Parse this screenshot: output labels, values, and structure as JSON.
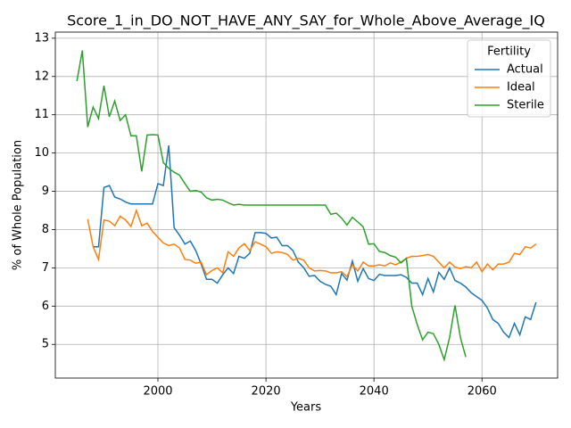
{
  "chart_data": {
    "type": "line",
    "title": "Score_1_in_DO_NOT_HAVE_ANY_SAY_for_Whole_Above_Average_IQ",
    "x_label": "Years",
    "y_label": "% of Whole Population",
    "legend_title": "Fertility",
    "legend_position": "upper right",
    "grid": true,
    "x": [
      1985,
      1986,
      1987,
      1988,
      1989,
      1990,
      1991,
      1992,
      1993,
      1994,
      1995,
      1996,
      1997,
      1998,
      1999,
      2000,
      2001,
      2002,
      2003,
      2004,
      2005,
      2006,
      2007,
      2008,
      2009,
      2010,
      2011,
      2012,
      2013,
      2014,
      2015,
      2016,
      2017,
      2018,
      2019,
      2020,
      2021,
      2022,
      2023,
      2024,
      2025,
      2026,
      2027,
      2028,
      2029,
      2030,
      2031,
      2032,
      2033,
      2034,
      2035,
      2036,
      2037,
      2038,
      2039,
      2040,
      2041,
      2042,
      2043,
      2044,
      2045,
      2046,
      2047,
      2048,
      2049,
      2050,
      2051,
      2052,
      2053,
      2054,
      2055,
      2056,
      2057,
      2058,
      2059,
      2060,
      2061,
      2062,
      2063,
      2064,
      2065,
      2066,
      2067,
      2068,
      2069,
      2070
    ],
    "xlim": [
      1981,
      2074
    ],
    "xticks": [
      2000,
      2020,
      2040,
      2060
    ],
    "ylim": [
      4.12,
      13.16
    ],
    "yticks": [
      5,
      6,
      7,
      8,
      9,
      10,
      11,
      12,
      13
    ],
    "series": [
      {
        "name": "Actual",
        "color": "#1f77b4",
        "values": [
          null,
          null,
          null,
          7.55,
          7.55,
          9.1,
          9.15,
          8.85,
          8.8,
          8.72,
          8.67,
          8.67,
          8.67,
          8.67,
          8.67,
          9.2,
          9.15,
          10.2,
          8.05,
          7.85,
          7.62,
          7.7,
          7.45,
          7.1,
          6.7,
          6.7,
          6.6,
          6.82,
          7.0,
          6.85,
          7.3,
          7.25,
          7.38,
          7.92,
          7.92,
          7.9,
          7.78,
          7.8,
          7.58,
          7.58,
          7.45,
          7.15,
          7.0,
          6.78,
          6.8,
          6.65,
          6.57,
          6.52,
          6.3,
          6.85,
          6.68,
          7.18,
          6.65,
          6.98,
          6.72,
          6.67,
          6.83,
          6.8,
          6.8,
          6.8,
          6.82,
          6.75,
          6.6,
          6.6,
          6.3,
          6.72,
          6.37,
          6.88,
          6.7,
          7.0,
          6.67,
          6.6,
          6.5,
          6.35,
          6.25,
          6.15,
          5.95,
          5.65,
          5.55,
          5.32,
          5.18,
          5.55,
          5.25,
          5.72,
          5.65,
          6.1
        ]
      },
      {
        "name": "Ideal",
        "color": "#ff7f0e",
        "values": [
          null,
          null,
          8.27,
          7.55,
          7.22,
          8.25,
          8.22,
          8.1,
          8.35,
          8.25,
          8.08,
          8.5,
          8.1,
          8.17,
          7.95,
          7.8,
          7.65,
          7.58,
          7.62,
          7.52,
          7.22,
          7.2,
          7.12,
          7.15,
          6.82,
          6.93,
          7.0,
          6.87,
          7.42,
          7.3,
          7.52,
          7.63,
          7.45,
          7.68,
          7.62,
          7.55,
          7.38,
          7.42,
          7.4,
          7.35,
          7.2,
          7.25,
          7.2,
          7.0,
          6.92,
          6.93,
          6.92,
          6.87,
          6.87,
          6.9,
          6.77,
          7.08,
          6.92,
          7.15,
          7.05,
          7.05,
          7.08,
          7.05,
          7.13,
          7.08,
          7.15,
          7.25,
          7.3,
          7.3,
          7.32,
          7.35,
          7.3,
          7.15,
          7.0,
          7.15,
          7.02,
          6.98,
          7.03,
          7.0,
          7.15,
          6.9,
          7.1,
          6.95,
          7.1,
          7.1,
          7.15,
          7.38,
          7.35,
          7.55,
          7.52,
          7.62
        ]
      },
      {
        "name": "Sterile",
        "color": "#2ca02c",
        "values": [
          11.88,
          12.68,
          10.68,
          11.2,
          10.9,
          11.76,
          10.95,
          11.36,
          10.85,
          11.0,
          10.45,
          10.45,
          9.52,
          10.47,
          10.48,
          10.47,
          9.75,
          9.6,
          9.5,
          9.42,
          9.2,
          9.0,
          9.02,
          8.98,
          8.83,
          8.77,
          8.79,
          8.77,
          8.7,
          8.64,
          8.66,
          8.64,
          8.64,
          8.64,
          8.64,
          8.64,
          8.64,
          8.64,
          8.64,
          8.64,
          8.64,
          8.64,
          8.64,
          8.64,
          8.64,
          8.64,
          8.64,
          8.4,
          8.43,
          8.3,
          8.12,
          8.32,
          8.2,
          8.07,
          7.62,
          7.63,
          7.43,
          7.4,
          7.32,
          7.28,
          7.13,
          7.25,
          6.0,
          5.52,
          5.12,
          5.32,
          5.28,
          5.0,
          4.6,
          5.18,
          6.02,
          5.18,
          4.67,
          null,
          null,
          null,
          null,
          null,
          null,
          null,
          null,
          null,
          null,
          null,
          null,
          null
        ]
      }
    ]
  }
}
